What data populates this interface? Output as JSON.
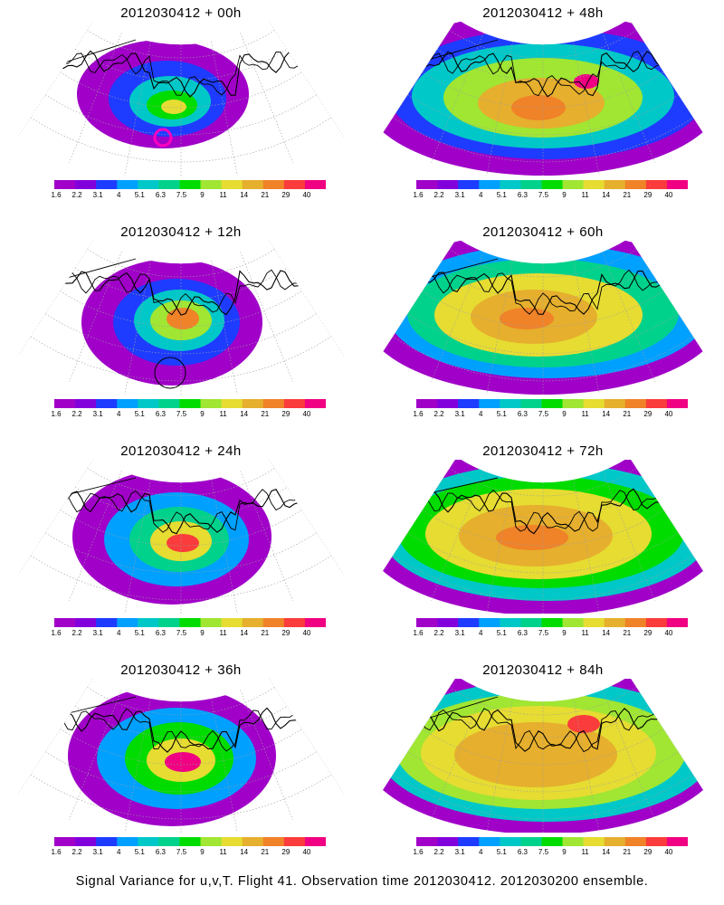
{
  "panels": [
    {
      "title": "2012030412 + 00h",
      "lead": "00h",
      "marker": "magenta-circle"
    },
    {
      "title": "2012030412 + 48h",
      "lead": "48h"
    },
    {
      "title": "2012030412 + 12h",
      "lead": "12h",
      "marker": "black-circle"
    },
    {
      "title": "2012030412 + 60h",
      "lead": "60h"
    },
    {
      "title": "2012030412 + 24h",
      "lead": "24h"
    },
    {
      "title": "2012030412 + 72h",
      "lead": "72h"
    },
    {
      "title": "2012030412 + 36h",
      "lead": "36h"
    },
    {
      "title": "2012030412 + 84h",
      "lead": "84h"
    }
  ],
  "colorbar": {
    "labels": [
      "1.6",
      "2.2",
      "3.1",
      "4",
      "5.1",
      "6.3",
      "7.5",
      "9",
      "11",
      "14",
      "21",
      "29",
      "40"
    ],
    "colors": [
      "#a000c8",
      "#8200dc",
      "#1e3cff",
      "#00a0ff",
      "#00c8c8",
      "#00d28c",
      "#00dc00",
      "#a0e632",
      "#e6dc32",
      "#e6af2d",
      "#f08228",
      "#fa3c3c",
      "#f00082"
    ]
  },
  "caption": "Signal Variance for u,v,T. Flight 41. Observation time 2012030412. 2012030200 ensemble.",
  "colors": {
    "background": "#ffffff",
    "coastline": "#000000",
    "graticule": "#a0a0a0"
  }
}
